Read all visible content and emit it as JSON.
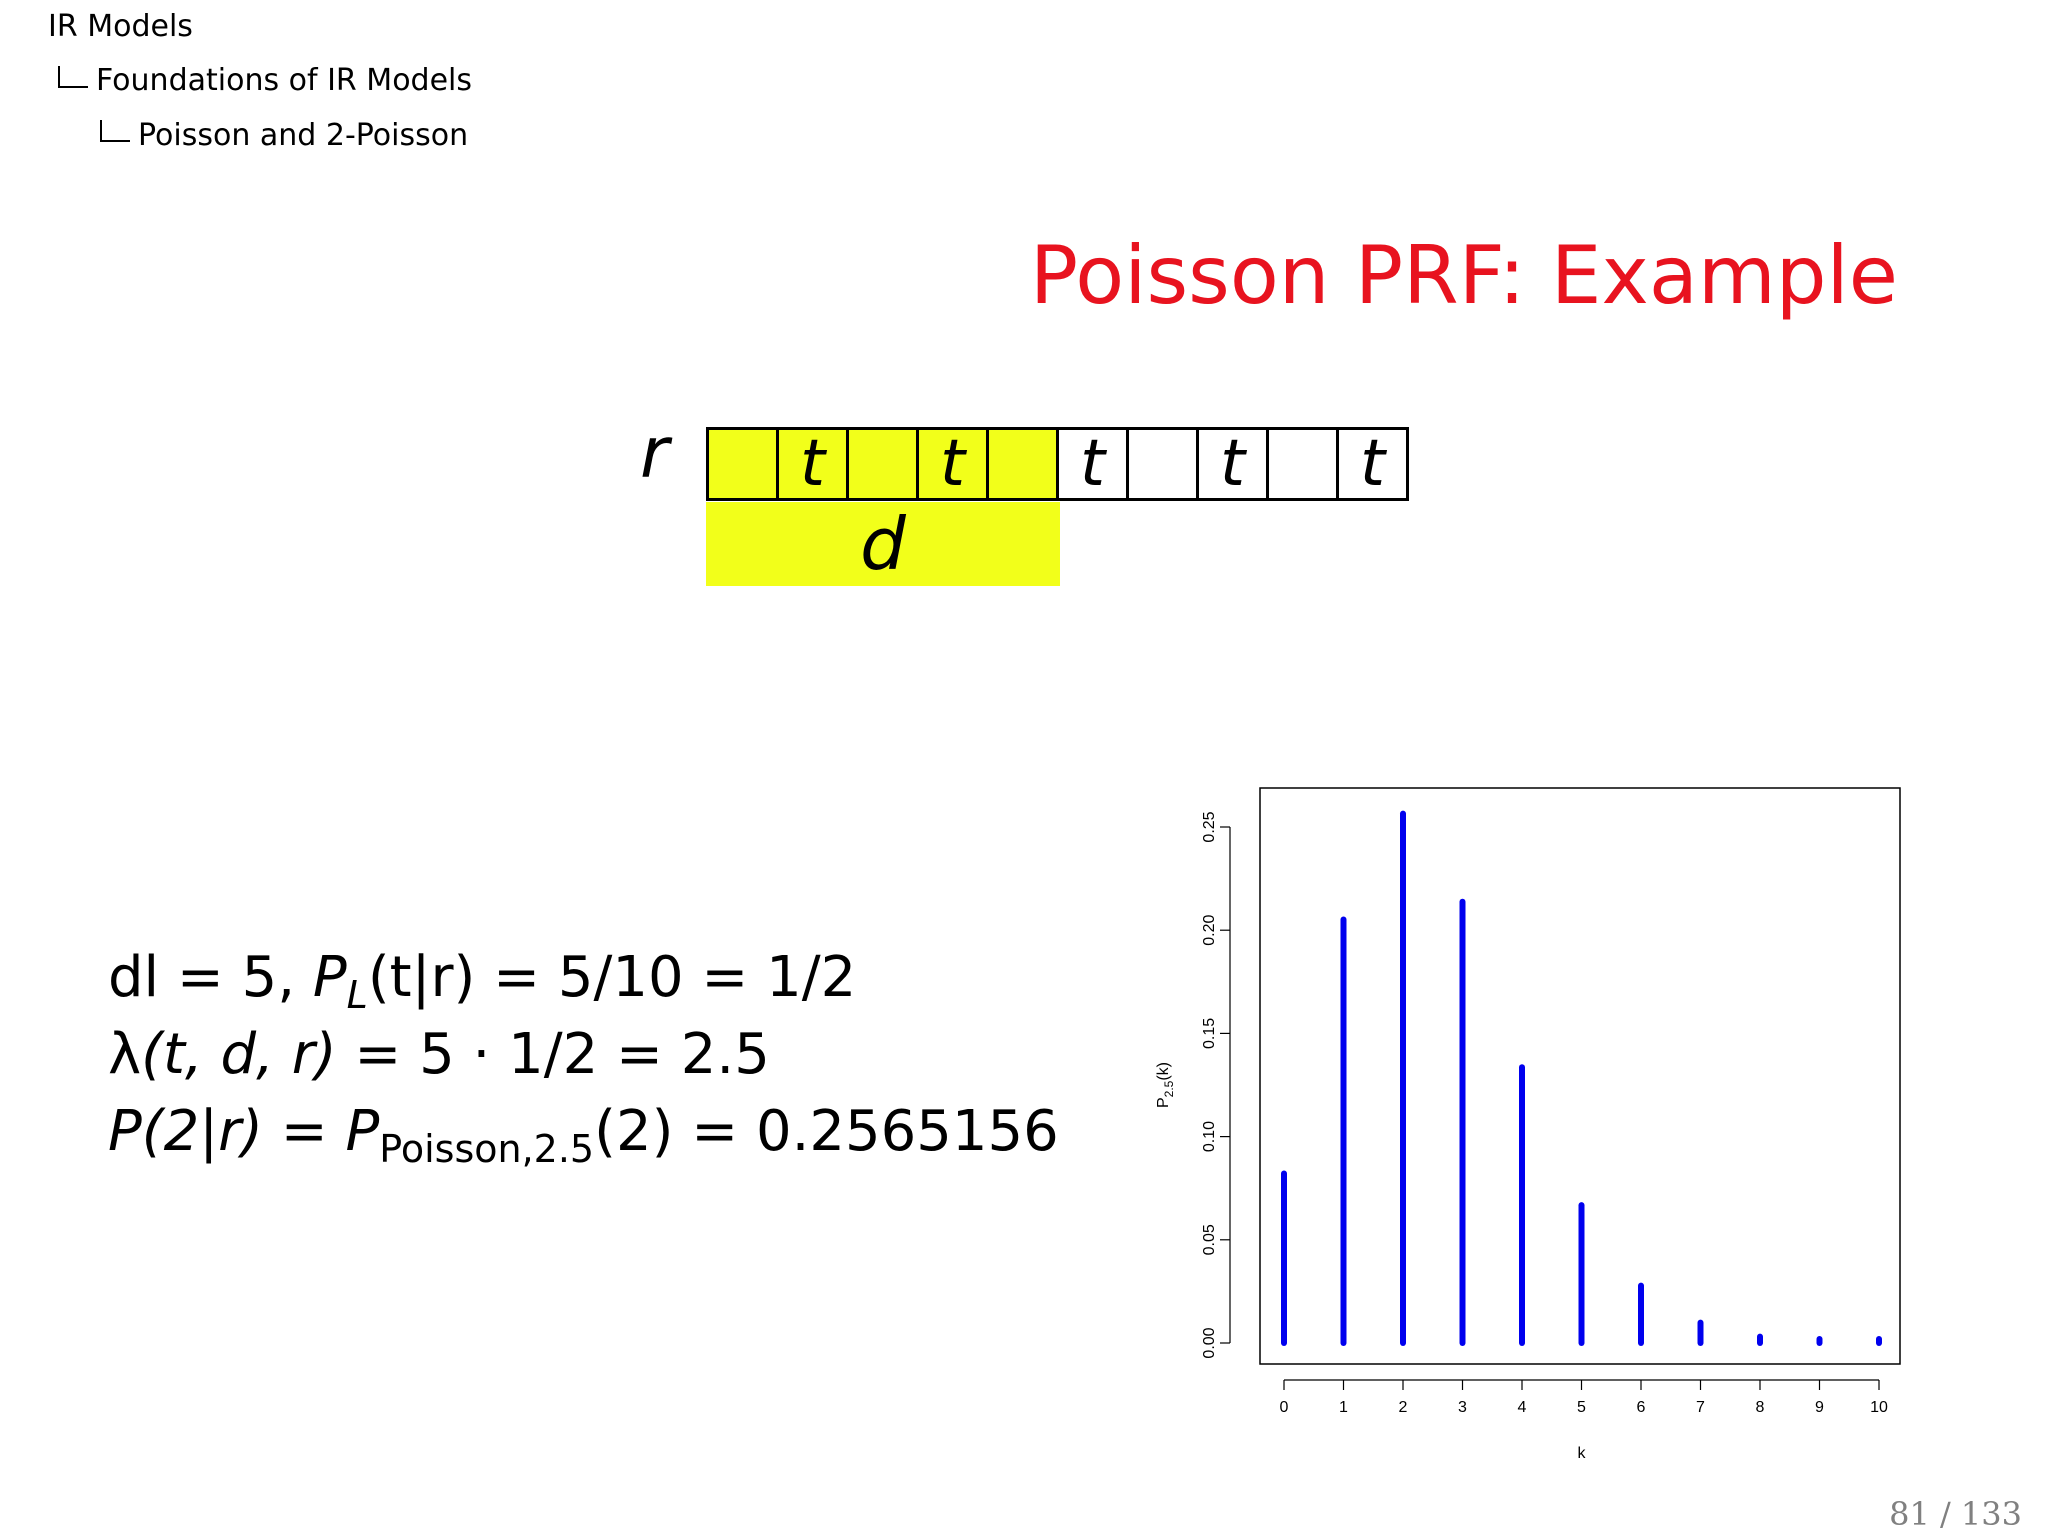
{
  "breadcrumb": {
    "level1": "IR Models",
    "level2": "Foundations of IR Models",
    "level3": "Poisson and 2-Poisson"
  },
  "slide": {
    "title": "Poisson PRF: Example",
    "page": "81 / 133"
  },
  "diagram": {
    "row_label": "r",
    "cells": [
      "",
      "t",
      "",
      "t",
      "",
      "t",
      "",
      "t",
      "",
      "t"
    ],
    "highlighted_count": 5,
    "highlight_color": "#f2ff1a",
    "doc_label": "d"
  },
  "equations": {
    "line1": {
      "lhs": "dl = 5, ",
      "p": "P",
      "sub": "L",
      "rest": "(t|r) = 5/10 = 1/2"
    },
    "line2": {
      "lambda": "λ",
      "args": "(t, d, r)",
      "rest": " = 5 · 1/2 = 2.5"
    },
    "line3": {
      "lhs": "P(2|r)",
      "eq": " = ",
      "p": "P",
      "sub": "Poisson,2.5",
      "rest": "(2) = 0.2565156"
    }
  },
  "colors": {
    "title": "#e8131f",
    "bars": "#0000ee"
  },
  "chart_data": {
    "type": "bar",
    "x": [
      0,
      1,
      2,
      3,
      4,
      5,
      6,
      7,
      8,
      9,
      10
    ],
    "values": [
      0.0821,
      0.2052,
      0.2565,
      0.2138,
      0.1336,
      0.0668,
      0.0278,
      0.0099,
      0.0031,
      0.0009,
      0.0002
    ],
    "xlabel": "k",
    "ylabel": "P_2.5(k)",
    "ylim": [
      0,
      0.25
    ],
    "yticks": [
      "0.00",
      "0.05",
      "0.10",
      "0.15",
      "0.20",
      "0.25"
    ],
    "xticks": [
      "0",
      "1",
      "2",
      "3",
      "4",
      "5",
      "6",
      "7",
      "8",
      "9",
      "10"
    ],
    "grid": false
  }
}
